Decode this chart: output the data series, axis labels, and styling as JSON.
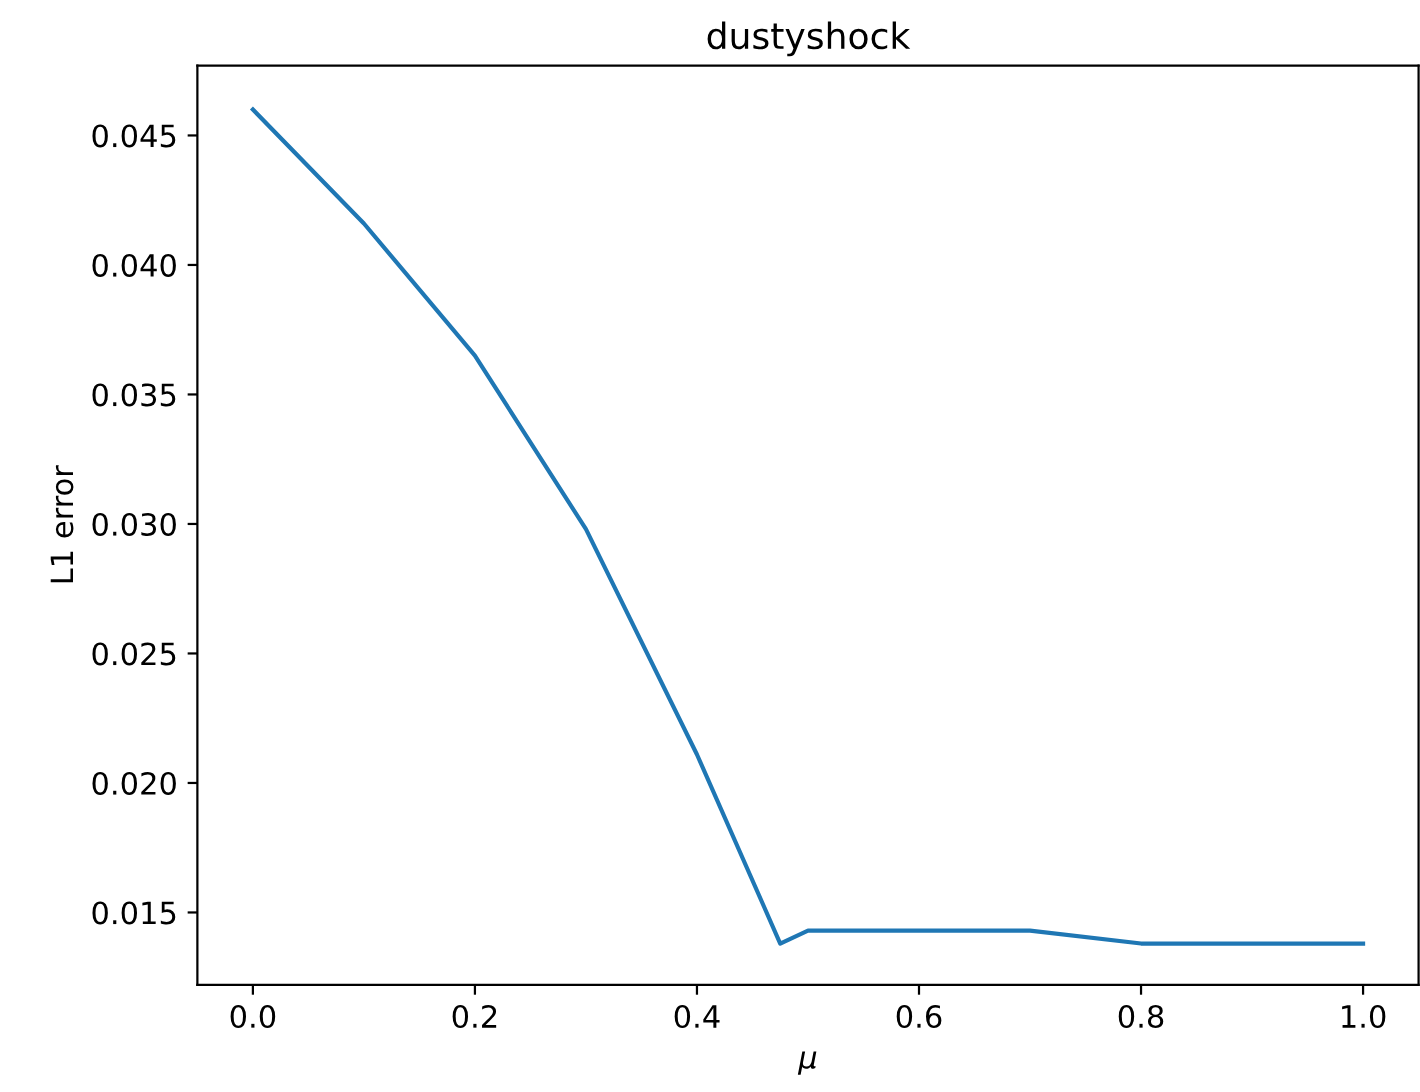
{
  "chart_data": {
    "type": "line",
    "title": "dustyshock",
    "xlabel": "μ",
    "ylabel": "L1 error",
    "x": [
      0.0,
      0.1,
      0.2,
      0.3,
      0.4,
      0.475,
      0.5,
      0.6,
      0.7,
      0.8,
      0.9,
      1.0
    ],
    "series": [
      {
        "color": "#1f77b4",
        "values": [
          0.046,
          0.0416,
          0.0365,
          0.0298,
          0.0211,
          0.0138,
          0.0143,
          0.0143,
          0.0143,
          0.0138,
          0.0138,
          0.0138
        ]
      }
    ],
    "xlim": [
      -0.05,
      1.05
    ],
    "xticks": [
      {
        "value": 0.0,
        "label": "0.0"
      },
      {
        "value": 0.2,
        "label": "0.2"
      },
      {
        "value": 0.4,
        "label": "0.4"
      },
      {
        "value": 0.6,
        "label": "0.6"
      },
      {
        "value": 0.8,
        "label": "0.8"
      },
      {
        "value": 1.0,
        "label": "1.0"
      }
    ],
    "ylim": [
      0.0122,
      0.0477
    ],
    "yticks": [
      {
        "value": 0.015,
        "label": "0.015"
      },
      {
        "value": 0.02,
        "label": "0.020"
      },
      {
        "value": 0.025,
        "label": "0.025"
      },
      {
        "value": 0.03,
        "label": "0.030"
      },
      {
        "value": 0.035,
        "label": "0.035"
      },
      {
        "value": 0.04,
        "label": "0.040"
      },
      {
        "value": 0.045,
        "label": "0.045"
      }
    ],
    "grid": false,
    "legend": false
  }
}
